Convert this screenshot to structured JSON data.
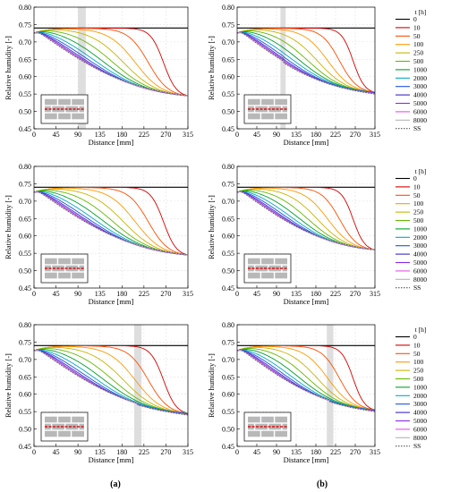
{
  "figure": {
    "panel_labels": [
      "(a)",
      "(b)"
    ]
  },
  "legend": {
    "title": "t [h]",
    "entries": [
      {
        "label": "0",
        "color": "#000000",
        "dash": "solid"
      },
      {
        "label": "10",
        "color": "#d40000",
        "dash": "solid"
      },
      {
        "label": "50",
        "color": "#ff4d00",
        "dash": "solid"
      },
      {
        "label": "100",
        "color": "#ff9900",
        "dash": "solid"
      },
      {
        "label": "250",
        "color": "#c8b400",
        "dash": "solid"
      },
      {
        "label": "500",
        "color": "#66b800",
        "dash": "solid"
      },
      {
        "label": "1000",
        "color": "#00a02a",
        "dash": "solid"
      },
      {
        "label": "2000",
        "color": "#00a8c8",
        "dash": "solid"
      },
      {
        "label": "3000",
        "color": "#1e50e6",
        "dash": "solid"
      },
      {
        "label": "4000",
        "color": "#3a28c8",
        "dash": "solid"
      },
      {
        "label": "5000",
        "color": "#8c28e6",
        "dash": "solid"
      },
      {
        "label": "6000",
        "color": "#e650e6",
        "dash": "solid"
      },
      {
        "label": "8000",
        "color": "#b4b4b4",
        "dash": "solid"
      },
      {
        "label": "SS",
        "color": "#555555",
        "dash": "dotted"
      }
    ]
  },
  "chart_data": [
    {
      "panel": "a-top",
      "type": "line",
      "xlabel": "Distance [mm]",
      "ylabel": "Relative humidity [-]",
      "xlim": [
        0,
        315
      ],
      "ylim": [
        0.45,
        0.8
      ],
      "xticks": [
        0,
        45,
        90,
        135,
        180,
        225,
        270,
        315
      ],
      "yticks": [
        "0.45",
        "0.50",
        "0.55",
        "0.60",
        "0.65",
        "0.70",
        "0.75",
        "0.80"
      ],
      "highlight_band": [
        90,
        106
      ],
      "kink": null,
      "x_end_rh": 0.545,
      "series_rh_at_x180": {
        "0": 0.74,
        "10": 0.74,
        "50": 0.74,
        "100": 0.74,
        "250": 0.737,
        "500": 0.728,
        "1000": 0.715,
        "2000": 0.695,
        "3000": 0.677,
        "4000": 0.662,
        "5000": 0.65,
        "6000": 0.642,
        "8000": 0.632,
        "SS": 0.627
      }
    },
    {
      "panel": "b-top",
      "type": "line",
      "xlabel": "Distance [mm]",
      "ylabel": "Relative humidity [-]",
      "xlim": [
        0,
        315
      ],
      "ylim": [
        0.45,
        0.8
      ],
      "xticks": [
        0,
        45,
        90,
        135,
        180,
        225,
        270,
        315
      ],
      "yticks": [
        "0.45",
        "0.50",
        "0.55",
        "0.60",
        "0.65",
        "0.70",
        "0.75",
        "0.80"
      ],
      "highlight_band": [
        99,
        111
      ],
      "kink": 105,
      "x_end_rh": 0.555,
      "series_rh_at_x180": {
        "0": 0.74,
        "10": 0.74,
        "50": 0.74,
        "100": 0.74,
        "250": 0.737,
        "500": 0.728,
        "1000": 0.712,
        "2000": 0.69,
        "3000": 0.672,
        "4000": 0.657,
        "5000": 0.645,
        "6000": 0.637,
        "8000": 0.627,
        "SS": 0.62
      }
    },
    {
      "panel": "a-middle",
      "type": "line",
      "xlabel": "Distance [mm]",
      "ylabel": "Relative humidity [-]",
      "xlim": [
        0,
        315
      ],
      "ylim": [
        0.45,
        0.8
      ],
      "xticks": [
        0,
        45,
        90,
        135,
        180,
        225,
        270,
        315
      ],
      "yticks": [
        "0.45",
        "0.50",
        "0.55",
        "0.60",
        "0.65",
        "0.70",
        "0.75",
        "0.80"
      ],
      "highlight_band": null,
      "kink": null,
      "x_end_rh": 0.545,
      "series_rh_at_x180": {
        "0": 0.74,
        "10": 0.74,
        "50": 0.74,
        "100": 0.74,
        "250": 0.736,
        "500": 0.725,
        "1000": 0.71,
        "2000": 0.69,
        "3000": 0.672,
        "4000": 0.657,
        "5000": 0.645,
        "6000": 0.637,
        "8000": 0.627,
        "SS": 0.622
      }
    },
    {
      "panel": "b-middle",
      "type": "line",
      "xlabel": "Distance [mm]",
      "ylabel": "Relative humidity [-]",
      "xlim": [
        0,
        315
      ],
      "ylim": [
        0.45,
        0.8
      ],
      "xticks": [
        0,
        45,
        90,
        135,
        180,
        225,
        270,
        315
      ],
      "yticks": [
        "0.45",
        "0.50",
        "0.55",
        "0.60",
        "0.65",
        "0.70",
        "0.75",
        "0.80"
      ],
      "highlight_band": null,
      "kink": null,
      "x_end_rh": 0.56,
      "series_rh_at_x180": {
        "0": 0.74,
        "10": 0.74,
        "50": 0.74,
        "100": 0.74,
        "250": 0.736,
        "500": 0.725,
        "1000": 0.71,
        "2000": 0.69,
        "3000": 0.672,
        "4000": 0.657,
        "5000": 0.645,
        "6000": 0.637,
        "8000": 0.627,
        "SS": 0.622
      }
    },
    {
      "panel": "a-bottom",
      "type": "line",
      "xlabel": "Distance [mm]",
      "ylabel": "Relative humidity [-]",
      "xlim": [
        0,
        315
      ],
      "ylim": [
        0.45,
        0.8
      ],
      "xticks": [
        0,
        45,
        90,
        135,
        180,
        225,
        270,
        315
      ],
      "yticks": [
        "0.45",
        "0.50",
        "0.55",
        "0.60",
        "0.65",
        "0.70",
        "0.75",
        "0.80"
      ],
      "highlight_band": [
        205,
        220
      ],
      "kink": 212,
      "x_end_rh": 0.545,
      "series_rh_at_x180": {
        "0": 0.74,
        "10": 0.74,
        "50": 0.74,
        "100": 0.74,
        "250": 0.737,
        "500": 0.728,
        "1000": 0.715,
        "2000": 0.695,
        "3000": 0.677,
        "4000": 0.662,
        "5000": 0.65,
        "6000": 0.642,
        "8000": 0.632,
        "SS": 0.627
      }
    },
    {
      "panel": "b-bottom",
      "type": "line",
      "xlabel": "Distance [mm]",
      "ylabel": "Relative humidity [-]",
      "xlim": [
        0,
        315
      ],
      "ylim": [
        0.45,
        0.8
      ],
      "xticks": [
        0,
        45,
        90,
        135,
        180,
        225,
        270,
        315
      ],
      "yticks": [
        "0.45",
        "0.50",
        "0.55",
        "0.60",
        "0.65",
        "0.70",
        "0.75",
        "0.80"
      ],
      "highlight_band": [
        205,
        220
      ],
      "kink": 212,
      "x_end_rh": 0.555,
      "series_rh_at_x180": {
        "0": 0.74,
        "10": 0.74,
        "50": 0.74,
        "100": 0.74,
        "250": 0.737,
        "500": 0.726,
        "1000": 0.71,
        "2000": 0.69,
        "3000": 0.67,
        "4000": 0.655,
        "5000": 0.643,
        "6000": 0.635,
        "8000": 0.625,
        "SS": 0.615
      }
    }
  ]
}
